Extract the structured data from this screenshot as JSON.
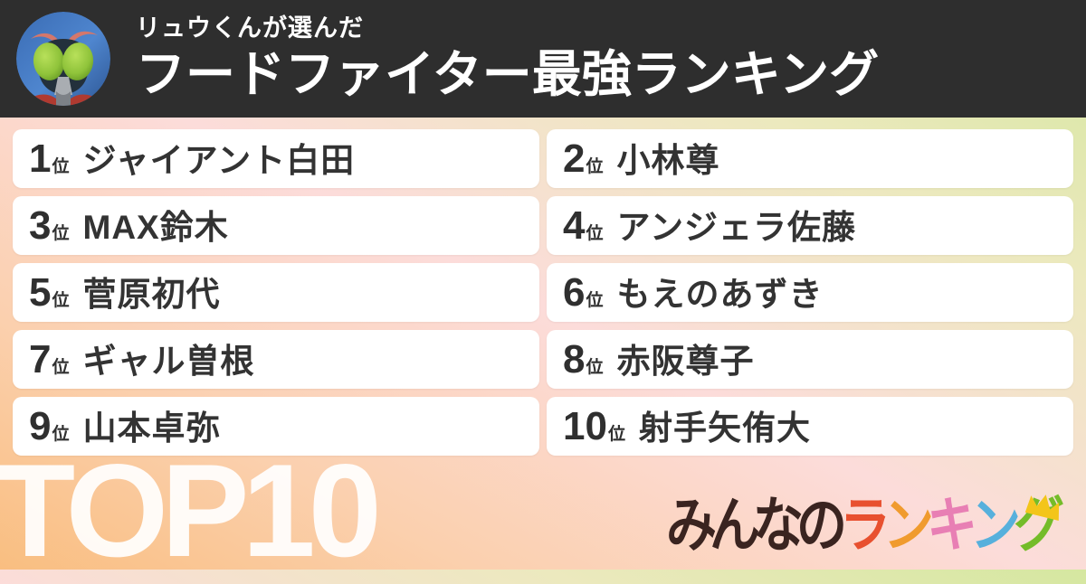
{
  "header": {
    "subtitle": "リュウくんが選んだ",
    "title": "フードファイター最強ランキング"
  },
  "ranking": {
    "rank_suffix": "位",
    "items": [
      {
        "rank": "1",
        "name": "ジャイアント白田"
      },
      {
        "rank": "2",
        "name": "小林尊"
      },
      {
        "rank": "3",
        "name": "MAX鈴木"
      },
      {
        "rank": "4",
        "name": "アンジェラ佐藤"
      },
      {
        "rank": "5",
        "name": "菅原初代"
      },
      {
        "rank": "6",
        "name": "もえのあずき"
      },
      {
        "rank": "7",
        "name": "ギャル曽根"
      },
      {
        "rank": "8",
        "name": "赤阪尊子"
      },
      {
        "rank": "9",
        "name": "山本卓弥"
      },
      {
        "rank": "10",
        "name": "射手矢侑大"
      }
    ]
  },
  "footer": {
    "top_label": "TOP10",
    "logo": {
      "prefix": "みんなの",
      "prefix_color": "#3a2420",
      "letters": [
        {
          "char": "ラ",
          "color": "#e8502f"
        },
        {
          "char": "ン",
          "color": "#f09b2e"
        },
        {
          "char": "キ",
          "color": "#e87fb4"
        },
        {
          "char": "ン",
          "color": "#57b0dc"
        },
        {
          "char": "グ",
          "color": "#74bc29"
        }
      ],
      "crown_icon_color": "#f3c51a"
    }
  },
  "colors": {
    "header_bg": "#2e2e2e",
    "header_text": "#ffffff",
    "card_bg": "#ffffff",
    "card_text": "#333333",
    "top10_text": "#ffffff",
    "bg_gradient": [
      "#f9be80",
      "#fbd0ae",
      "#fcdcda",
      "#ece9be",
      "#d5e7a0"
    ]
  }
}
